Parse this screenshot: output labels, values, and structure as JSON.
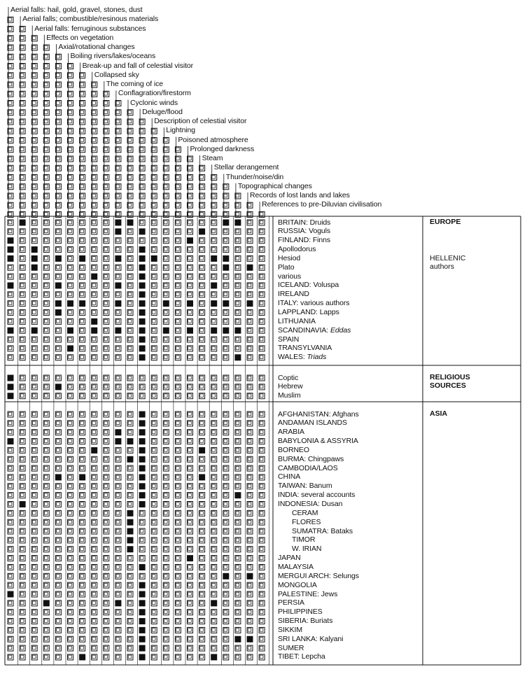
{
  "columns": [
    "Aerial falls: hail, gold, gravel, stones, dust",
    "Aerial falls; combustible/resinous materials",
    "Aerial falls: ferruginous substances",
    "Effects on vegetation",
    "Axial/rotational changes",
    "Boiling rivers/lakes/oceans",
    "Break-up and fall of celestial visitor",
    "Collapsed sky",
    "The coming of ice",
    "Conflagration/firestorm",
    "Cyclonic winds",
    "Deluge/flood",
    "Description of celestial visitor",
    "Lightning",
    "Poisoned atmosphere",
    "Prolonged darkness",
    "Steam",
    "Stellar derangement",
    "Thunder/noise/din",
    "Topographical changes",
    "Records of lost lands and lakes",
    "References to pre-Diluvian civilisation"
  ],
  "groups": [
    {
      "title": "EUROPE",
      "subtitle": [
        "HELLENIC",
        "authors"
      ],
      "rows": [
        {
          "label": "BRITAIN: Druids",
          "filled": [
            1,
            9,
            10,
            18,
            19
          ]
        },
        {
          "label": "RUSSIA: Voguls",
          "filled": [
            9,
            11,
            16
          ]
        },
        {
          "label": "FINLAND: Finns",
          "filled": [
            0,
            15
          ]
        },
        {
          "label": "Apollodorus",
          "filled": [
            0,
            2,
            11
          ]
        },
        {
          "label": "Hesiod",
          "filled": [
            0,
            2,
            4,
            6,
            9,
            11,
            12,
            17,
            18
          ]
        },
        {
          "label": "Plato",
          "filled": [
            2,
            11,
            18,
            20
          ]
        },
        {
          "label": "various",
          "filled": [
            7,
            11
          ]
        },
        {
          "label": "ICELAND: Voluspa",
          "filled": [
            0,
            4,
            9,
            11,
            17
          ]
        },
        {
          "label": "IRELAND",
          "filled": [
            11
          ]
        },
        {
          "label": "ITALY: various authors",
          "filled": [
            4,
            5,
            6,
            9,
            11,
            13,
            15,
            17,
            18,
            20
          ]
        },
        {
          "label": "LAPPLAND: Lapps",
          "filled": [
            4,
            11
          ]
        },
        {
          "label": "LITHUANIA",
          "filled": [
            7,
            11
          ]
        },
        {
          "label": "SCANDINAVIA: Eddas",
          "italic": "Eddas",
          "filled": [
            0,
            2,
            5,
            7,
            9,
            11,
            13,
            15,
            17,
            18,
            19
          ]
        },
        {
          "label": "SPAIN",
          "filled": [
            11
          ]
        },
        {
          "label": "TRANSYLVANIA",
          "filled": [
            5,
            11
          ]
        },
        {
          "label": "WALES: Triads",
          "italic": "Triads",
          "filled": [
            11,
            19
          ]
        }
      ]
    },
    {
      "title": "RELIGIOUS",
      "title2": "SOURCES",
      "rows": [
        {
          "label": "Coptic",
          "filled": [
            0
          ]
        },
        {
          "label": "Hebrew",
          "filled": [
            0,
            4
          ]
        },
        {
          "label": "Muslim",
          "filled": [
            0
          ]
        }
      ]
    },
    {
      "title": "ASIA",
      "rows": [
        {
          "label": "AFGHANISTAN: Afghans",
          "filled": [
            11
          ]
        },
        {
          "label": "ANDAMAN ISLANDS",
          "filled": [
            11
          ]
        },
        {
          "label": "ARABIA",
          "filled": [
            9,
            11
          ]
        },
        {
          "label": "BABYLONIA & ASSYRIA",
          "filled": [
            0,
            9,
            10,
            11
          ]
        },
        {
          "label": "BORNEO",
          "filled": [
            7,
            11,
            16
          ]
        },
        {
          "label": "BURMA: Chingpaws",
          "filled": [
            10,
            11
          ]
        },
        {
          "label": "CAMBODIA/LAOS",
          "filled": [
            11
          ]
        },
        {
          "label": "CHINA",
          "filled": [
            4,
            6,
            11,
            16
          ]
        },
        {
          "label": "TAIWAN: Banum",
          "filled": [
            11
          ]
        },
        {
          "label": "INDIA: several accounts",
          "filled": [
            11,
            19
          ]
        },
        {
          "label": "INDONESIA: Dusan",
          "filled": [
            1,
            11
          ]
        },
        {
          "label": "CERAM",
          "indent": true,
          "filled": [
            10
          ]
        },
        {
          "label": "FLORES",
          "indent": true,
          "filled": [
            10
          ]
        },
        {
          "label": "SUMATRA: Bataks",
          "indent": true,
          "filled": [
            10
          ]
        },
        {
          "label": "TIMOR",
          "indent": true,
          "filled": [
            10
          ]
        },
        {
          "label": "W. IRIAN",
          "indent": true,
          "filled": [
            10
          ]
        },
        {
          "label": "JAPAN",
          "filled": [
            15
          ]
        },
        {
          "label": "MALAYSIA",
          "filled": [
            11
          ]
        },
        {
          "label": "MERGUI ARCH: Selungs",
          "filled": [
            18,
            20
          ]
        },
        {
          "label": "MONGOLIA",
          "filled": [
            11
          ]
        },
        {
          "label": "PALESTINE: Jews",
          "filled": [
            0,
            11
          ]
        },
        {
          "label": "PERSIA",
          "filled": [
            3,
            9,
            11,
            17
          ]
        },
        {
          "label": "PHILIPPINES",
          "filled": [
            11
          ]
        },
        {
          "label": "SIBERIA: Buriats",
          "filled": [
            11
          ]
        },
        {
          "label": "SIKKIM",
          "filled": [
            11
          ]
        },
        {
          "label": "SRI LANKA: Kalyani",
          "filled": [
            11,
            19,
            20
          ]
        },
        {
          "label": "SUMER",
          "filled": [
            11
          ]
        },
        {
          "label": "TIBET: Lepcha",
          "filled": [
            6,
            11,
            17
          ]
        }
      ]
    }
  ]
}
